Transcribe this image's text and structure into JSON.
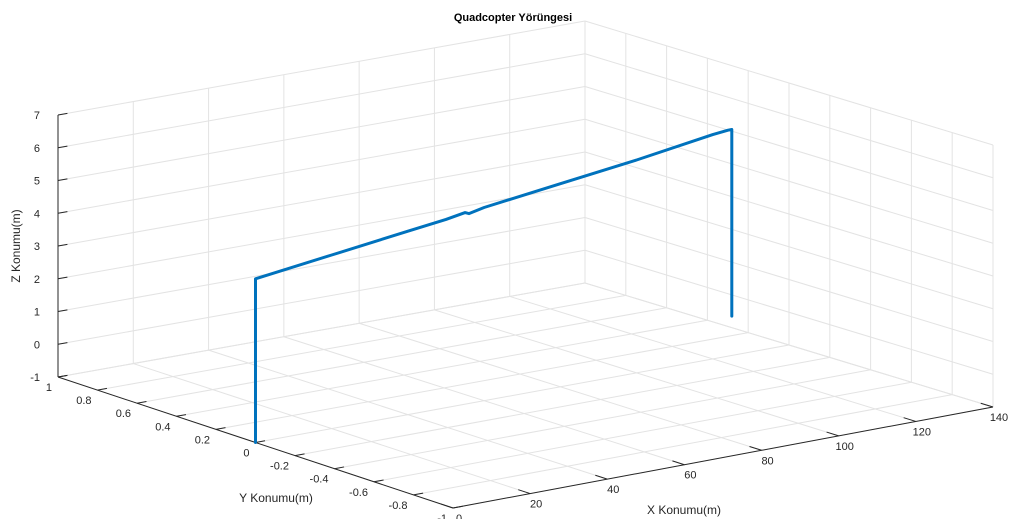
{
  "chart_data": {
    "type": "line",
    "title": "Quadcopter Yörüngesi",
    "xlabel": "X Konumu(m)",
    "ylabel": "Y Konumu(m)",
    "zlabel": "Z Konumu(m)",
    "xlim": [
      0,
      140
    ],
    "ylim": [
      -1,
      1
    ],
    "zlim": [
      -1,
      7
    ],
    "x_ticks": [
      "0",
      "20",
      "40",
      "60",
      "80",
      "100",
      "120",
      "140"
    ],
    "y_ticks": [
      "-1",
      "-0.8",
      "-0.6",
      "-0.4",
      "-0.2",
      "0",
      "0.2",
      "0.4",
      "0.6",
      "0.8",
      "1"
    ],
    "z_ticks": [
      "-1",
      "0",
      "1",
      "2",
      "3",
      "4",
      "5",
      "6",
      "7"
    ],
    "grid": true,
    "line_color": "#0072bd",
    "series": [
      {
        "x": [
          0,
          0,
          0,
          20,
          40,
          50,
          55,
          56,
          60,
          80,
          100,
          120,
          124,
          125,
          125,
          125,
          125
        ],
        "y": [
          0,
          0,
          0,
          0,
          0,
          0,
          0,
          0,
          0,
          0,
          0,
          0,
          0,
          0,
          0,
          0,
          0
        ],
        "z": [
          -1,
          2,
          4,
          4.3,
          4.6,
          4.75,
          4.85,
          4.8,
          4.9,
          5.2,
          5.5,
          5.85,
          5.9,
          5.9,
          3,
          1,
          0.2
        ]
      }
    ]
  }
}
